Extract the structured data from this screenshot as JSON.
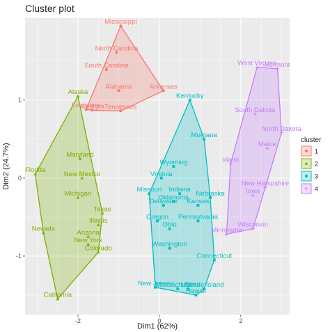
{
  "chart_data": {
    "type": "scatter",
    "title": "Cluster plot",
    "xlabel": "Dim1 (62%)",
    "ylabel": "Dim2 (24.7%)",
    "xlim": [
      -3.3,
      3.2
    ],
    "ylim": [
      -1.75,
      2.05
    ],
    "x_ticks": [
      -2,
      0,
      2
    ],
    "y_ticks": [
      -1,
      0,
      1
    ],
    "x_tick_labels": [
      "-2",
      "0",
      "2"
    ],
    "y_tick_labels": [
      "-1",
      "0",
      "1"
    ],
    "grid": true,
    "legend_position": "right",
    "legend_title": "cluster",
    "series": [
      {
        "name": "1",
        "color": "#F8766D",
        "marker": "circle",
        "points": [
          {
            "label": "Mississippi",
            "x": -0.95,
            "y": 1.95
          },
          {
            "label": "North Carolina",
            "x": -1.05,
            "y": 1.61
          },
          {
            "label": "South Carolina",
            "x": -1.3,
            "y": 1.39
          },
          {
            "label": "Georgia",
            "x": -1.65,
            "y": 0.87
          },
          {
            "label": "Alabama",
            "x": -1.0,
            "y": 1.12
          },
          {
            "label": "Arkansas",
            "x": 0.1,
            "y": 1.12
          },
          {
            "label": "Louisiana",
            "x": -1.8,
            "y": 0.88
          },
          {
            "label": "Tennessee",
            "x": -0.95,
            "y": 0.86
          }
        ]
      },
      {
        "name": "2",
        "color": "#7CAE00",
        "marker": "triangle",
        "points": [
          {
            "label": "Alaska",
            "x": -2.0,
            "y": 1.05
          },
          {
            "label": "Maryland",
            "x": -1.95,
            "y": 0.25
          },
          {
            "label": "New Mexico",
            "x": -1.9,
            "y": 0.0
          },
          {
            "label": "Florida",
            "x": -3.05,
            "y": 0.05
          },
          {
            "label": "Michigan",
            "x": -2.0,
            "y": -0.25
          },
          {
            "label": "Texas",
            "x": -1.4,
            "y": -0.45
          },
          {
            "label": "Illinois",
            "x": -1.5,
            "y": -0.6
          },
          {
            "label": "Nevada",
            "x": -2.85,
            "y": -0.7
          },
          {
            "label": "Arizona",
            "x": -1.75,
            "y": -0.75
          },
          {
            "label": "New York",
            "x": -1.75,
            "y": -0.85
          },
          {
            "label": "Colorado",
            "x": -1.5,
            "y": -0.95
          },
          {
            "label": "California",
            "x": -2.5,
            "y": -1.55
          }
        ]
      },
      {
        "name": "3",
        "color": "#00BFC4",
        "marker": "square",
        "points": [
          {
            "label": "Kentucky",
            "x": 0.75,
            "y": 1.0
          },
          {
            "label": "Montana",
            "x": 1.1,
            "y": 0.5
          },
          {
            "label": "Wyoming",
            "x": 0.35,
            "y": 0.15
          },
          {
            "label": "Virginia",
            "x": 0.05,
            "y": 0.0
          },
          {
            "label": "Missouri",
            "x": -0.25,
            "y": -0.2
          },
          {
            "label": "Indiana",
            "x": 0.5,
            "y": -0.2
          },
          {
            "label": "Nebraska",
            "x": 1.25,
            "y": -0.25
          },
          {
            "label": "Kansas",
            "x": 0.95,
            "y": -0.35
          },
          {
            "label": "Oklahoma",
            "x": 0.35,
            "y": -0.3
          },
          {
            "label": "Delaware",
            "x": 0.1,
            "y": -0.35
          },
          {
            "label": "Oregon",
            "x": -0.05,
            "y": -0.55
          },
          {
            "label": "Pennsylvania",
            "x": 0.95,
            "y": -0.55
          },
          {
            "label": "Ohio",
            "x": 0.25,
            "y": -0.65
          },
          {
            "label": "Washington",
            "x": 0.25,
            "y": -0.9
          },
          {
            "label": "Connecticut",
            "x": 1.35,
            "y": -1.05
          },
          {
            "label": "New Jersey",
            "x": -0.1,
            "y": -1.4
          },
          {
            "label": "Massachusetts",
            "x": 0.45,
            "y": -1.42
          },
          {
            "label": "Utah",
            "x": 0.7,
            "y": -1.42
          },
          {
            "label": "Rhode Island",
            "x": 1.1,
            "y": -1.42
          },
          {
            "label": "Hawaii",
            "x": 0.9,
            "y": -1.5
          }
        ]
      },
      {
        "name": "4",
        "color": "#C77CFF",
        "marker": "cross",
        "points": [
          {
            "label": "West Virginia",
            "x": 2.4,
            "y": 1.42
          },
          {
            "label": "Vermont",
            "x": 2.9,
            "y": 1.4
          },
          {
            "label": "South Dakota",
            "x": 2.35,
            "y": 0.82
          },
          {
            "label": "North Dakota",
            "x": 3.0,
            "y": 0.58
          },
          {
            "label": "Maine",
            "x": 2.65,
            "y": 0.38
          },
          {
            "label": "Idaho",
            "x": 1.75,
            "y": 0.18
          },
          {
            "label": "New Hampshire",
            "x": 2.6,
            "y": -0.12
          },
          {
            "label": "Iowa",
            "x": 2.3,
            "y": -0.22
          },
          {
            "label": "Minnesota",
            "x": 1.65,
            "y": -0.72
          },
          {
            "label": "Wisconsin",
            "x": 2.3,
            "y": -0.65
          }
        ]
      }
    ]
  }
}
